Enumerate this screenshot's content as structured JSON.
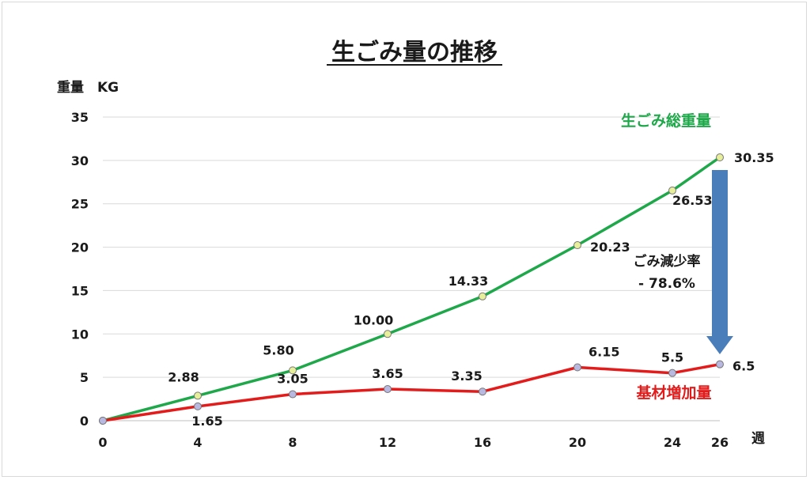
{
  "chart_data": {
    "type": "line",
    "title": "生ごみ量の推移",
    "ylabel": "重量　KG",
    "xlabel": "週",
    "ylim": [
      0,
      35
    ],
    "yticks": [
      "0",
      "5",
      "10",
      "15",
      "20",
      "25",
      "30",
      "35"
    ],
    "x": [
      0,
      4,
      8,
      12,
      16,
      20,
      24,
      26
    ],
    "xticks": [
      "0",
      "4",
      "8",
      "12",
      "16",
      "20",
      "24",
      "26"
    ],
    "grid": true,
    "series": [
      {
        "name": "生ごみ総重量",
        "color": "#1ea84a",
        "marker_color": "#e7ef9a",
        "values": [
          0,
          2.88,
          5.8,
          10.0,
          14.33,
          20.23,
          26.53,
          30.35
        ],
        "labels": [
          "",
          "2.88",
          "5.80",
          "10.00",
          "14.33",
          "20.23",
          "26.53",
          "30.35"
        ]
      },
      {
        "name": "基材増加量",
        "color": "#e31b1b",
        "marker_color": "#b9b8e0",
        "values": [
          0,
          1.65,
          3.05,
          3.65,
          3.35,
          6.15,
          5.5,
          6.5
        ],
        "labels": [
          "",
          "1.65",
          "3.05",
          "3.65",
          "3.35",
          "6.15",
          "5.5",
          "6.5"
        ]
      }
    ],
    "annotation": {
      "line1": "ごみ減少率",
      "line2": "- 78.6%",
      "arrow_color": "#4a7ebb"
    }
  }
}
